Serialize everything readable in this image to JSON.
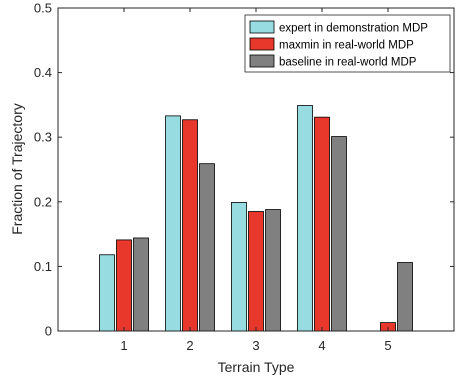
{
  "chart_data": {
    "type": "bar",
    "title": "",
    "xlabel": "Terrain Type",
    "ylabel": "Fraction of Trajectory",
    "categories": [
      "1",
      "2",
      "3",
      "4",
      "5"
    ],
    "ylim": [
      0,
      0.5
    ],
    "yticks": [
      0,
      0.1,
      0.2,
      0.3,
      0.4,
      0.5
    ],
    "ytick_labels": [
      "0",
      "0.1",
      "0.2",
      "0.3",
      "0.4",
      "0.5"
    ],
    "grid": false,
    "legend_position": "top-right",
    "series": [
      {
        "name": "expert in demonstration MDP",
        "color": "#97dce1",
        "values": [
          0.118,
          0.333,
          0.199,
          0.349,
          0.0
        ]
      },
      {
        "name": "maxmin in real-world MDP",
        "color": "#e8382c",
        "values": [
          0.141,
          0.327,
          0.185,
          0.331,
          0.013
        ]
      },
      {
        "name": "baseline in real-world MDP",
        "color": "#808080",
        "values": [
          0.144,
          0.259,
          0.188,
          0.301,
          0.106
        ]
      }
    ]
  }
}
